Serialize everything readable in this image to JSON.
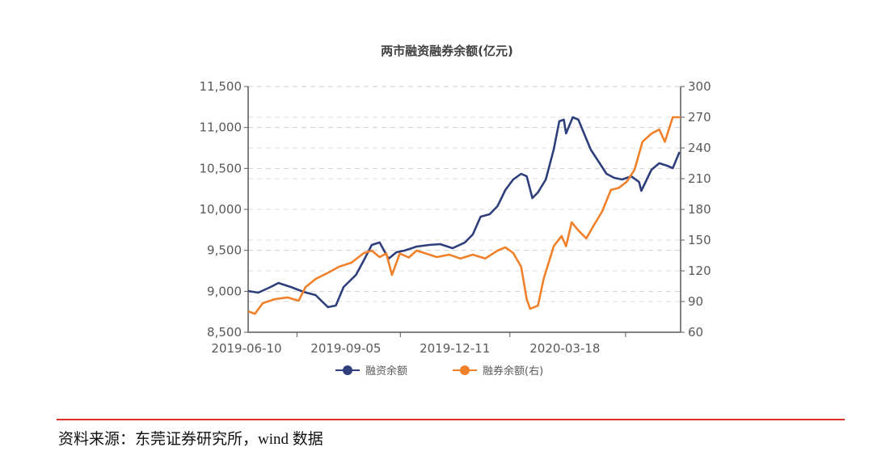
{
  "chart_data": {
    "type": "line",
    "title": "两市融资融券余额(亿元)",
    "xlabel": "",
    "x_unit": "days since 2019-06-10",
    "x_ticks": [
      {
        "day": 0,
        "label": "2019-06-10"
      },
      {
        "day": 87,
        "label": "2019-09-05"
      },
      {
        "day": 184,
        "label": "2019-12-11"
      },
      {
        "day": 282,
        "label": "2020-03-18"
      }
    ],
    "xlim": [
      0,
      385
    ],
    "y_left": {
      "ylim": [
        8500,
        11500
      ],
      "ticks": [
        "8,500",
        "9,000",
        "9,500",
        "10,000",
        "10,500",
        "11,000",
        "11,500"
      ]
    },
    "y_right": {
      "ylim": [
        60,
        300
      ],
      "ticks": [
        "60",
        "90",
        "120",
        "150",
        "180",
        "210",
        "240",
        "270",
        "300"
      ]
    },
    "grid": true,
    "legend_position": "bottom",
    "series": [
      {
        "name": "融资余额",
        "axis": "left",
        "color": "#2e3f7c",
        "x": [
          0,
          9,
          20,
          27,
          38,
          49,
          60,
          71,
          78,
          85,
          96,
          103,
          110,
          117,
          125,
          132,
          139,
          150,
          161,
          171,
          182,
          193,
          200,
          207,
          215,
          222,
          229,
          236,
          243,
          248,
          253,
          258,
          265,
          272,
          277,
          281,
          283,
          289,
          294,
          299,
          305,
          312,
          319,
          326,
          333,
          341,
          348,
          350,
          359,
          366,
          373,
          378,
          384
        ],
        "y": [
          9003,
          8984,
          9053,
          9102,
          9053,
          8994,
          8954,
          8807,
          8826,
          9053,
          9201,
          9378,
          9566,
          9596,
          9398,
          9477,
          9497,
          9546,
          9566,
          9576,
          9526,
          9596,
          9694,
          9911,
          9941,
          10039,
          10237,
          10365,
          10434,
          10404,
          10138,
          10207,
          10365,
          10730,
          11076,
          11095,
          10928,
          11125,
          11095,
          10928,
          10730,
          10582,
          10434,
          10385,
          10365,
          10404,
          10335,
          10227,
          10484,
          10563,
          10533,
          10503,
          10701
        ]
      },
      {
        "name": "融券余额(右)",
        "axis": "right",
        "color": "#f0812a",
        "x": [
          0,
          6,
          13,
          24,
          35,
          45,
          51,
          60,
          71,
          81,
          92,
          103,
          110,
          117,
          123,
          128,
          135,
          143,
          150,
          157,
          168,
          179,
          189,
          200,
          211,
          222,
          229,
          236,
          243,
          248,
          251,
          258,
          263,
          272,
          279,
          283,
          288,
          294,
          301,
          308,
          315,
          323,
          330,
          337,
          344,
          351,
          359,
          366,
          371,
          378,
          385
        ],
        "y": [
          80.5,
          78,
          88.4,
          92.4,
          94,
          90.8,
          104,
          112,
          118,
          124,
          128,
          137.4,
          139.7,
          133.4,
          137,
          116,
          137,
          133,
          139.7,
          137.4,
          133.4,
          135.8,
          132,
          135.8,
          132,
          139.7,
          143,
          137.4,
          124,
          92.4,
          83,
          86,
          112,
          144,
          154,
          144,
          167.4,
          159.5,
          151.6,
          165,
          177.6,
          199,
          201,
          207,
          218.7,
          246,
          254,
          258,
          246,
          270,
          270
        ]
      }
    ]
  },
  "footer": {
    "source": "资料来源：东莞证券研究所，wind 数据"
  }
}
